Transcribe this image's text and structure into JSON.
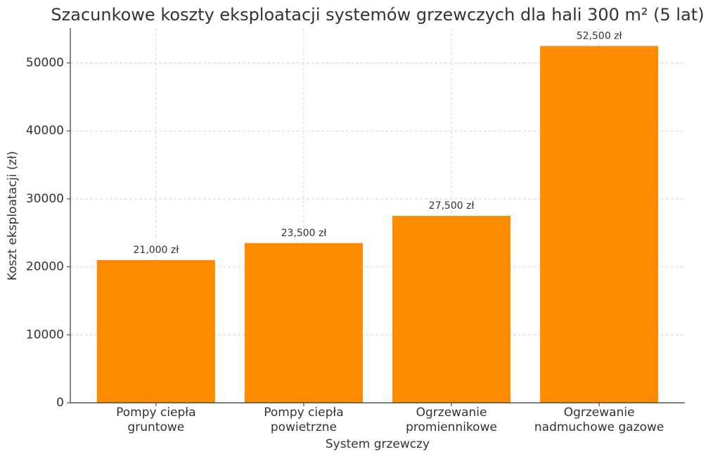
{
  "chart_data": {
    "type": "bar",
    "title": "Szacunkowe koszty eksploatacji systemów grzewczych dla hali 300 m² (5 lat)",
    "x_label": "System grzewczy",
    "y_label": "Koszt eksploatacji (zł)",
    "categories": [
      "Pompy ciepła\ngruntowe",
      "Pompy ciepła\npowietrzne",
      "Ogrzewanie\npromiennikowe",
      "Ogrzewanie\nnadmuchowe gazowe"
    ],
    "values": [
      21000,
      23500,
      27500,
      52500
    ],
    "value_labels": [
      "21,000 zł",
      "23,500 zł",
      "27,500 zł",
      "52,500 zł"
    ],
    "color": "#ff8c00",
    "ylim": [
      0,
      55125
    ],
    "yticks": [
      0,
      10000,
      20000,
      30000,
      40000,
      50000
    ],
    "grid": true
  }
}
